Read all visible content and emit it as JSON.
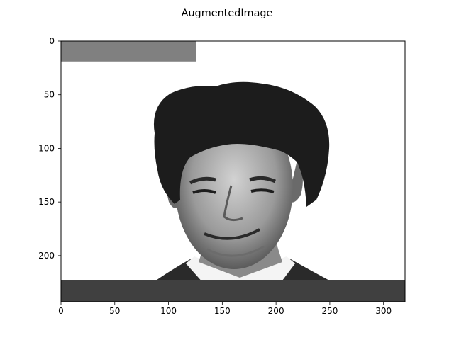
{
  "chart_data": {
    "type": "image",
    "title": "AugmentedImage",
    "xlabel": "",
    "ylabel": "",
    "x_ticks": [
      0,
      50,
      100,
      150,
      200,
      250,
      300
    ],
    "y_ticks": [
      0,
      50,
      100,
      150,
      200
    ],
    "xlim": [
      0,
      320
    ],
    "ylim": [
      243,
      0
    ],
    "grid": false,
    "colormap": "gray",
    "image_content": "grayscale photo of a smiling man's face on a white background",
    "augmentation_rectangles": [
      {
        "label": "top-left gray occlusion",
        "x_range": [
          0,
          126
        ],
        "y_range": [
          0,
          19
        ],
        "gray_level": 0.5,
        "color": "#808080"
      },
      {
        "label": "bottom dark occlusion",
        "x_range": [
          0,
          320
        ],
        "y_range": [
          223,
          243
        ],
        "gray_level": 0.25,
        "color": "#404040"
      }
    ]
  }
}
